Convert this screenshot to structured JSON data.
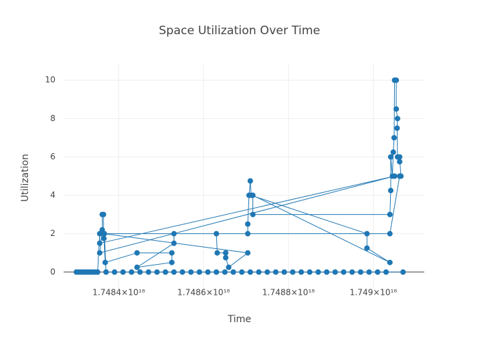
{
  "chart_data": {
    "type": "line",
    "title": "Space Utilization Over Time",
    "x_label": "Time",
    "y_label": "Utilization",
    "color": "#1f77b4",
    "grid": true,
    "zeroline": true,
    "xlim": [
      1.74827e+18,
      1.74912e+18
    ],
    "ylim": [
      -0.9,
      10.9
    ],
    "xticks": [
      {
        "value": 1.7484e+18,
        "label": "1.7484×10¹⁸"
      },
      {
        "value": 1.7486e+18,
        "label": "1.7486×10¹⁸"
      },
      {
        "value": 1.7488e+18,
        "label": "1.7488×10¹⁸"
      },
      {
        "value": 1.749e+18,
        "label": "1.749×10¹⁸"
      }
    ],
    "yticks": [
      0,
      2,
      4,
      6,
      8,
      10
    ],
    "x": [
      1.7483e+18,
      1.748305e+18,
      1.74831e+18,
      1.748315e+18,
      1.74832e+18,
      1.748325e+18,
      1.74833e+18,
      1.748335e+18,
      1.74834e+18,
      1.748345e+18,
      1.74835e+18,
      1.748355e+18,
      1.748355e+18,
      1.74905e+18,
      1.748355e+18,
      1.748361e+18,
      1.748361e+18,
      1.748364e+18,
      1.748364e+18,
      1.748365e+18,
      1.748368e+18,
      1.748443e+18,
      1.748525e+18,
      1.748525e+18,
      1.748443e+18,
      1.74853e+18,
      1.74853e+18,
      1.74863e+18,
      1.748632e+18,
      1.748652e+18,
      1.748652e+18,
      1.748659e+18,
      1.748704e+18,
      1.748365e+18,
      1.748704e+18,
      1.748704e+18,
      1.748707e+18,
      1.74871e+18,
      1.748712e+18,
      1.748985e+18,
      1.748985e+18,
      1.749039e+18,
      1.748716e+18,
      1.748716e+18,
      1.749039e+18,
      1.749041e+18,
      1.749041e+18,
      1.749045e+18,
      1.749047e+18,
      1.749049e+18,
      1.74905e+18,
      1.749054e+18,
      1.749054e+18,
      1.749057e+18,
      1.749056e+18,
      1.749057e+18,
      1.749062e+18,
      1.749062e+18,
      1.749065e+18,
      1.749062e+18,
      1.749039e+18,
      1.748366e+18,
      1.74837e+18,
      1.74839e+18,
      1.74841e+18,
      1.74843e+18,
      1.74845e+18,
      1.74847e+18,
      1.74849e+18,
      1.74851e+18,
      1.74853e+18,
      1.74855e+18,
      1.74857e+18,
      1.74859e+18,
      1.74861e+18,
      1.74863e+18,
      1.74865e+18,
      1.74867e+18,
      1.74869e+18,
      1.74871e+18,
      1.74873e+18,
      1.74875e+18,
      1.74877e+18,
      1.74879e+18,
      1.74881e+18,
      1.74883e+18,
      1.74885e+18,
      1.74887e+18,
      1.74889e+18,
      1.74891e+18,
      1.74893e+18,
      1.74895e+18,
      1.74897e+18,
      1.74899e+18,
      1.74901e+18,
      1.74903e+18,
      1.74907e+18
    ],
    "values": [
      0,
      0,
      0,
      0,
      0,
      0,
      0,
      0,
      0,
      0,
      0,
      2,
      1.5,
      5,
      1,
      2.2,
      3,
      3,
      2,
      1.75,
      0.5,
      1,
      1,
      0.5,
      0.25,
      1.5,
      2,
      2,
      1,
      1,
      0.75,
      0.25,
      1,
      2,
      2,
      2.5,
      4,
      4.75,
      4,
      2,
      1.25,
      0.5,
      4,
      3,
      3,
      4.25,
      6,
      5,
      6.25,
      7,
      10,
      10,
      8.5,
      8,
      7.5,
      6,
      5.75,
      6,
      5,
      5,
      2,
      2,
      0,
      0,
      0,
      0,
      0,
      0,
      0,
      0,
      0,
      0,
      0,
      0,
      0,
      0,
      0,
      0,
      0,
      0,
      0,
      0,
      0,
      0,
      0,
      0,
      0,
      0,
      0,
      0,
      0,
      0,
      0,
      0,
      0,
      0,
      0
    ]
  }
}
